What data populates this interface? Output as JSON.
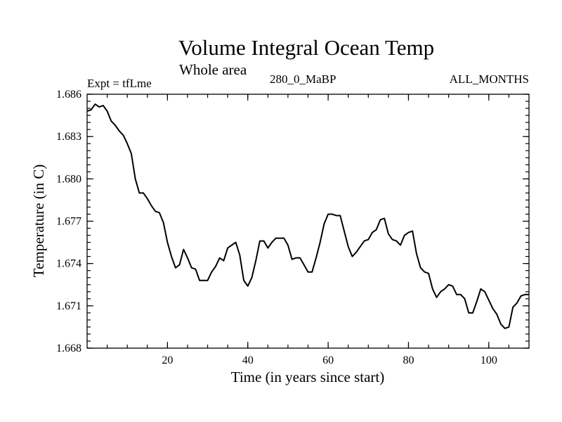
{
  "chart_data": {
    "type": "line",
    "title": "Volume Integral Ocean Temp",
    "subtitle": "Whole area",
    "left_label": "Expt = tfLme",
    "center_label": "280_0_MaBP",
    "right_label": "ALL_MONTHS",
    "xlabel": "Time (in years since start)",
    "ylabel": "Temperature (in C)",
    "xlim": [
      0,
      110
    ],
    "ylim": [
      1.668,
      1.686
    ],
    "xticks": [
      20,
      40,
      60,
      80,
      100
    ],
    "xtick_labels": [
      "20",
      "40",
      "60",
      "80",
      "100"
    ],
    "yticks": [
      1.668,
      1.671,
      1.674,
      1.677,
      1.68,
      1.683,
      1.686
    ],
    "ytick_labels": [
      "1.668",
      "1.671",
      "1.674",
      "1.677",
      "1.680",
      "1.683",
      "1.686"
    ],
    "grid": false,
    "series": [
      {
        "name": "Volume Integral Ocean Temp",
        "color": "#000000",
        "x": [
          0,
          1,
          2,
          3,
          4,
          5,
          6,
          7,
          8,
          9,
          10,
          11,
          12,
          13,
          14,
          15,
          16,
          17,
          18,
          19,
          20,
          21,
          22,
          23,
          24,
          25,
          26,
          27,
          28,
          29,
          30,
          31,
          32,
          33,
          34,
          35,
          36,
          37,
          38,
          39,
          40,
          41,
          42,
          43,
          44,
          45,
          46,
          47,
          48,
          49,
          50,
          51,
          52,
          53,
          54,
          55,
          56,
          57,
          58,
          59,
          60,
          61,
          62,
          63,
          64,
          65,
          66,
          67,
          68,
          69,
          70,
          71,
          72,
          73,
          74,
          75,
          76,
          77,
          78,
          79,
          80,
          81,
          82,
          83,
          84,
          85,
          86,
          87,
          88,
          89,
          90,
          91,
          92,
          93,
          94,
          95,
          96,
          97,
          98,
          99,
          100,
          101,
          102,
          103,
          104,
          105,
          106,
          107,
          108,
          109,
          110
        ],
        "values": [
          1.6848,
          1.6849,
          1.6853,
          1.6851,
          1.6852,
          1.6848,
          1.6841,
          1.6838,
          1.6834,
          1.6831,
          1.6825,
          1.6818,
          1.68,
          1.679,
          1.679,
          1.6786,
          1.6781,
          1.6777,
          1.6776,
          1.6769,
          1.6755,
          1.6745,
          1.6737,
          1.6739,
          1.675,
          1.6744,
          1.6737,
          1.6736,
          1.6728,
          1.6728,
          1.6728,
          1.6734,
          1.6738,
          1.6744,
          1.6742,
          1.6751,
          1.6753,
          1.6755,
          1.6746,
          1.6728,
          1.6724,
          1.673,
          1.6742,
          1.6756,
          1.6756,
          1.6751,
          1.6755,
          1.6758,
          1.6758,
          1.6758,
          1.6753,
          1.6743,
          1.6744,
          1.6744,
          1.6739,
          1.6734,
          1.6734,
          1.6744,
          1.6755,
          1.6768,
          1.6775,
          1.6775,
          1.6774,
          1.6774,
          1.6763,
          1.6752,
          1.6745,
          1.6748,
          1.6752,
          1.6756,
          1.6757,
          1.6762,
          1.6764,
          1.6771,
          1.6772,
          1.6761,
          1.6757,
          1.6756,
          1.6753,
          1.676,
          1.6762,
          1.6763,
          1.6747,
          1.6737,
          1.6734,
          1.6733,
          1.6722,
          1.6716,
          1.672,
          1.6722,
          1.6725,
          1.6724,
          1.6718,
          1.6718,
          1.6715,
          1.6705,
          1.6705,
          1.6713,
          1.6722,
          1.672,
          1.6714,
          1.6708,
          1.6704,
          1.6697,
          1.6694,
          1.6695,
          1.6709,
          1.6712,
          1.6717,
          1.6718,
          1.6718
        ]
      }
    ]
  }
}
